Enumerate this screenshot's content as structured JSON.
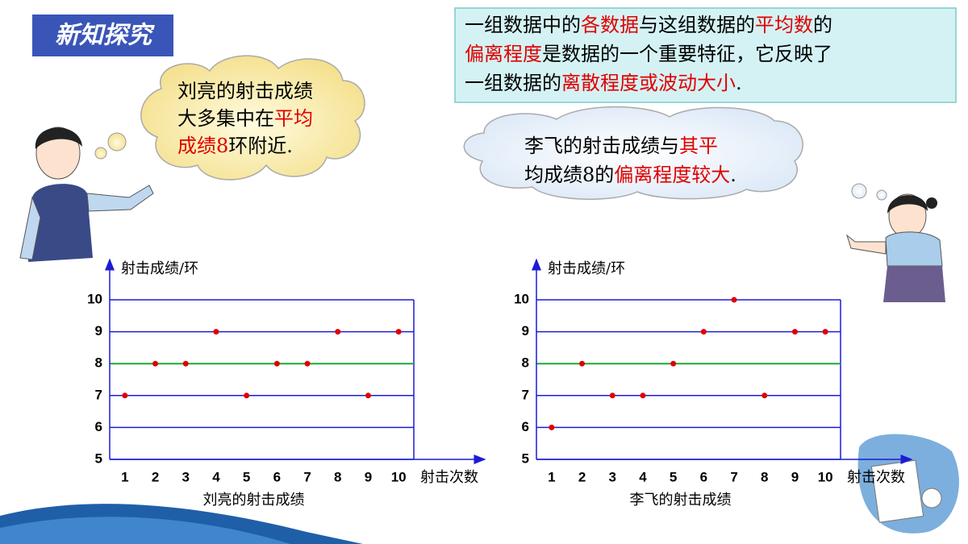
{
  "header": {
    "title": "新知探究"
  },
  "definition": {
    "lines": [
      [
        {
          "text": "一组数据中的",
          "color": "#000000"
        },
        {
          "text": "各数据",
          "color": "#e00000"
        },
        {
          "text": "与这组数据的",
          "color": "#000000"
        },
        {
          "text": "平均数",
          "color": "#e00000"
        },
        {
          "text": "的",
          "color": "#000000"
        }
      ],
      [
        {
          "text": "偏离程度",
          "color": "#e00000"
        },
        {
          "text": "是数据的一个重要特征，它反映了",
          "color": "#000000"
        }
      ],
      [
        {
          "text": "一组数据的",
          "color": "#000000"
        },
        {
          "text": "离散程度或波动大小",
          "color": "#e00000"
        },
        {
          "text": ".",
          "color": "#000000"
        }
      ]
    ]
  },
  "thought_left": {
    "lines": [
      [
        {
          "text": "刘亮的射击成绩",
          "color": "#000000"
        }
      ],
      [
        {
          "text": "大多集中在",
          "color": "#000000"
        },
        {
          "text": "平均",
          "color": "#e00000"
        }
      ],
      [
        {
          "text": "成绩8",
          "color": "#e00000"
        },
        {
          "text": "环附近.",
          "color": "#000000"
        }
      ]
    ]
  },
  "thought_right": {
    "lines": [
      [
        {
          "text": "李飞的射击成绩与",
          "color": "#000000"
        },
        {
          "text": "其平",
          "color": "#e00000"
        }
      ],
      [
        {
          "text": "均成绩8的",
          "color": "#000000"
        },
        {
          "text": "偏离程度较大",
          "color": "#e00000"
        },
        {
          "text": ".",
          "color": "#000000"
        }
      ]
    ]
  },
  "chart_data": [
    {
      "type": "scatter",
      "caption": "刘亮的射击成绩",
      "xlabel": "射击次数",
      "ylabel": "射击成绩/环",
      "x": [
        1,
        2,
        3,
        4,
        5,
        6,
        7,
        8,
        9,
        10
      ],
      "values": [
        7,
        8,
        8,
        9,
        7,
        8,
        8,
        9,
        7,
        9
      ],
      "color": "#e00000",
      "mean": 8,
      "mean_color": "#1fa83a",
      "grid": true,
      "grid_color": "#1c1cd6",
      "xlim": [
        0.5,
        10.5
      ],
      "ylim": [
        5,
        10
      ],
      "xticks": [
        1,
        2,
        3,
        4,
        5,
        6,
        7,
        8,
        9,
        10
      ],
      "yticks": [
        5,
        6,
        7,
        8,
        9,
        10
      ]
    },
    {
      "type": "scatter",
      "caption": "李飞的射击成绩",
      "xlabel": "射击次数",
      "ylabel": "射击成绩/环",
      "x": [
        1,
        2,
        3,
        4,
        5,
        6,
        7,
        8,
        9,
        10
      ],
      "values": [
        6,
        8,
        7,
        7,
        8,
        9,
        10,
        7,
        9,
        9
      ],
      "color": "#e00000",
      "mean": 8,
      "mean_color": "#1fa83a",
      "grid": true,
      "grid_color": "#1c1cd6",
      "xlim": [
        0.5,
        10.5
      ],
      "ylim": [
        5,
        10
      ],
      "xticks": [
        1,
        2,
        3,
        4,
        5,
        6,
        7,
        8,
        9,
        10
      ],
      "yticks": [
        5,
        6,
        7,
        8,
        9,
        10
      ]
    }
  ]
}
